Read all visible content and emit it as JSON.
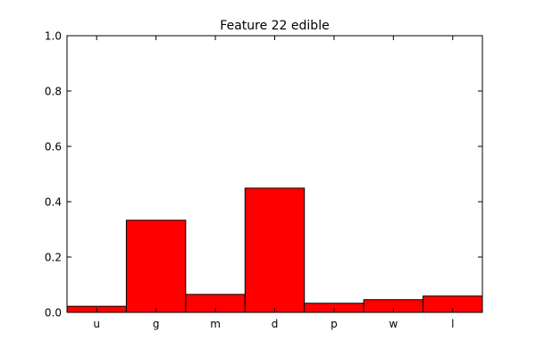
{
  "chart_data": {
    "type": "bar",
    "title": "Feature 22 edible",
    "categories": [
      "u",
      "g",
      "m",
      "d",
      "p",
      "w",
      "l"
    ],
    "values": [
      0.022,
      0.333,
      0.065,
      0.449,
      0.033,
      0.046,
      0.059
    ],
    "xlabel": "",
    "ylabel": "",
    "ylim": [
      0,
      1.0
    ],
    "yticks": [
      0.0,
      0.2,
      0.4,
      0.6,
      0.8,
      1.0
    ],
    "ytick_labels": [
      "0.0",
      "0.2",
      "0.4",
      "0.6",
      "0.8",
      "1.0"
    ],
    "bar_color": "#ff0000",
    "edge_color": "#000000",
    "grid": false
  }
}
